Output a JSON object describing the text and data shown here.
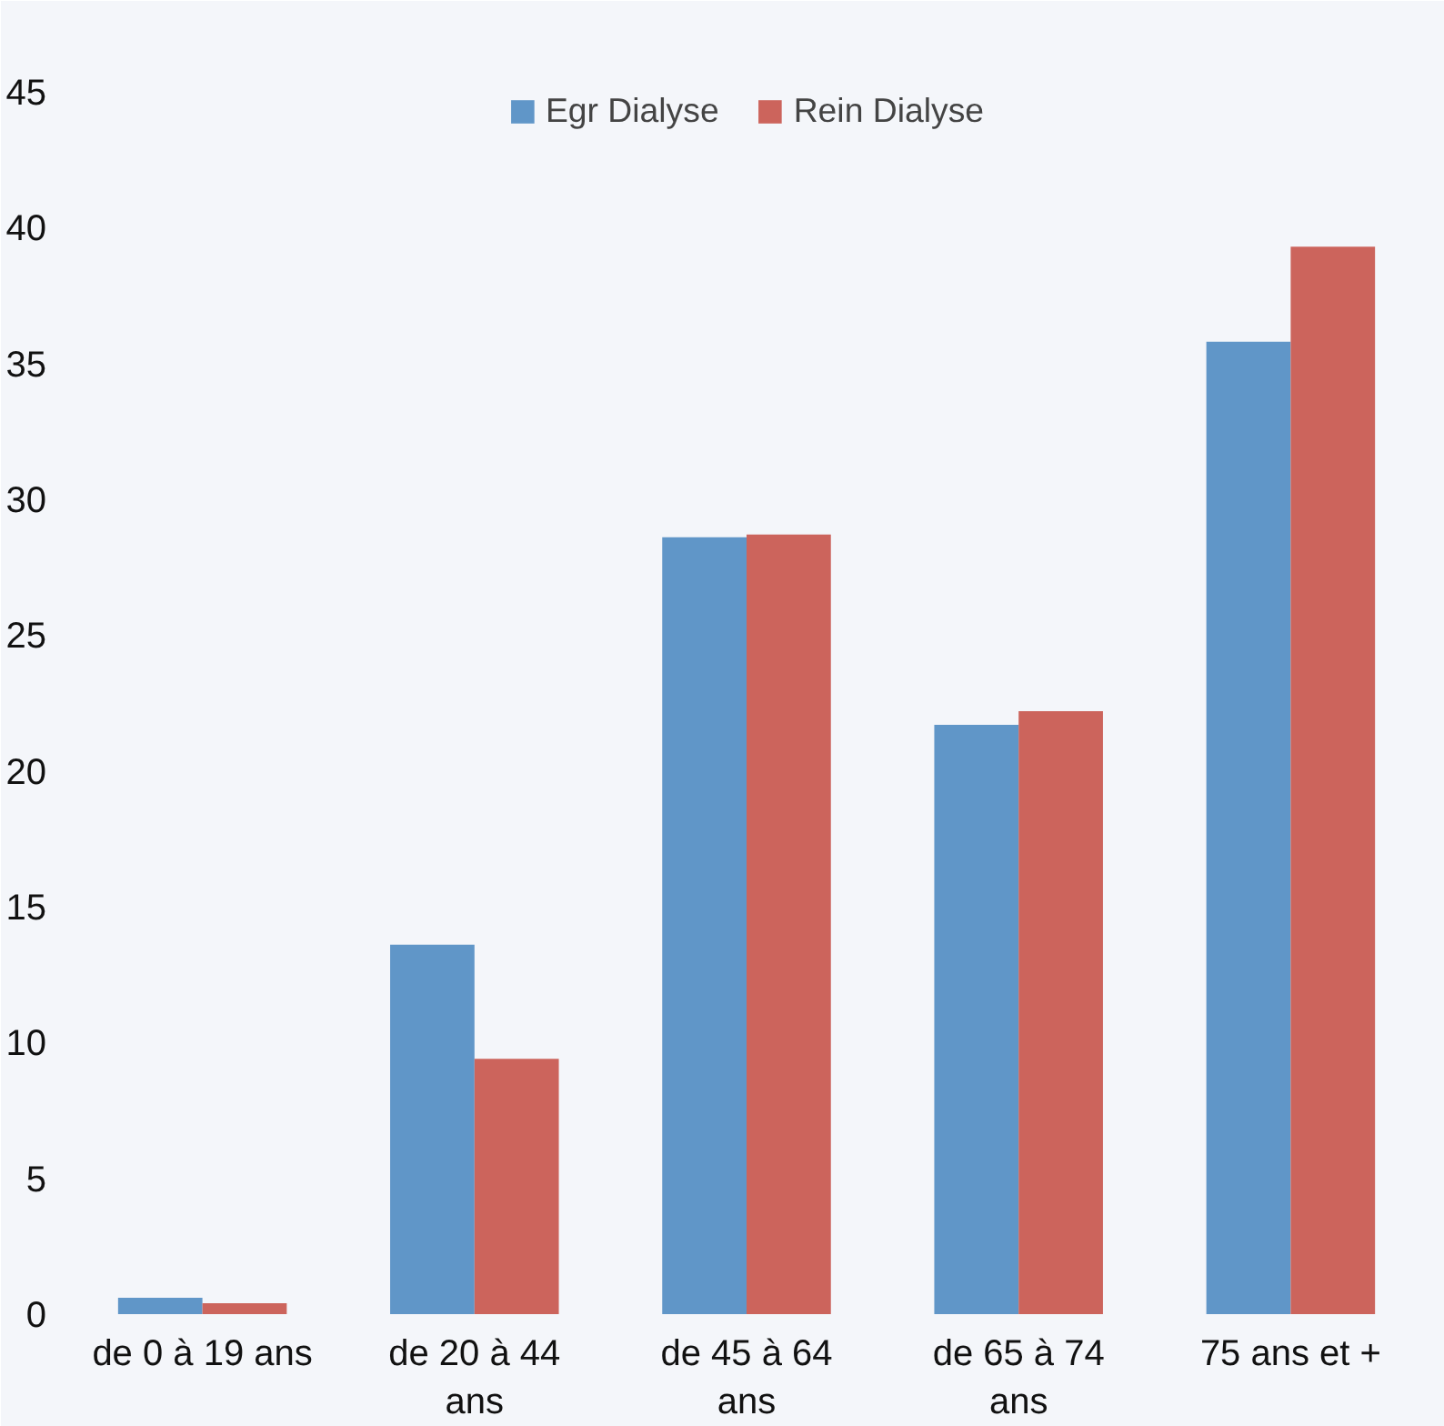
{
  "chart_data": {
    "type": "bar",
    "categories": [
      "de 0 à 19 ans",
      "de 20 à 44 ans",
      "de 45 à 64 ans",
      "de 65 à 74 ans",
      "75 ans et +"
    ],
    "series": [
      {
        "name": "Egr Dialyse",
        "color": "#6096c8",
        "values": [
          0.6,
          13.6,
          28.6,
          21.7,
          35.8
        ]
      },
      {
        "name": "Rein Dialyse",
        "color": "#cc645c",
        "values": [
          0.4,
          9.4,
          28.7,
          22.2,
          39.3
        ]
      }
    ],
    "ylim": [
      0,
      45
    ],
    "yticks": [
      0,
      5,
      10,
      15,
      20,
      25,
      30,
      35,
      40,
      45
    ],
    "grid": false,
    "legend": "top"
  }
}
